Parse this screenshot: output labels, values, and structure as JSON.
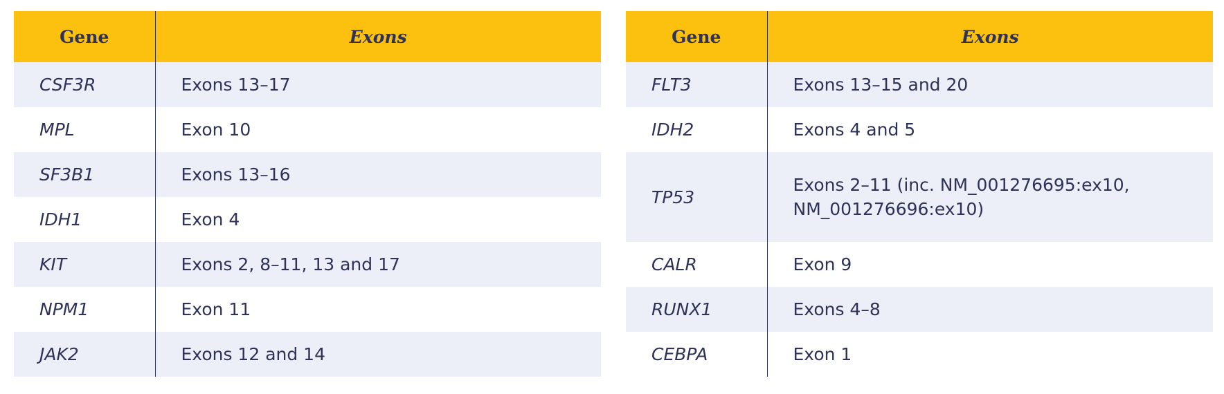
{
  "headers": {
    "gene": "Gene",
    "exons": "Exons"
  },
  "left_table": {
    "rows": [
      {
        "gene": "CSF3R",
        "exons": "Exons 13–17"
      },
      {
        "gene": "MPL",
        "exons": "Exon 10"
      },
      {
        "gene": "SF3B1",
        "exons": "Exons 13–16"
      },
      {
        "gene": "IDH1",
        "exons": "Exon 4"
      },
      {
        "gene": "KIT",
        "exons": "Exons 2, 8–11, 13 and 17"
      },
      {
        "gene": "NPM1",
        "exons": "Exon 11"
      },
      {
        "gene": "JAK2",
        "exons": "Exons 12 and 14"
      }
    ]
  },
  "right_table": {
    "rows": [
      {
        "gene": "FLT3",
        "exons": "Exons 13–15 and 20"
      },
      {
        "gene": "IDH2",
        "exons": "Exons 4 and 5"
      },
      {
        "gene": "TP53",
        "exons": "Exons 2–11 (inc. NM_001276695:ex10, NM_001276696:ex10)"
      },
      {
        "gene": "CALR",
        "exons": "Exon 9"
      },
      {
        "gene": "RUNX1",
        "exons": "Exons 4–8"
      },
      {
        "gene": "CEBPA",
        "exons": "Exon 1"
      }
    ]
  },
  "colors": {
    "header_background": "#fcc00e",
    "text": "#2e3258",
    "row_shade": "#edeff8",
    "row_plain": "#ffffff"
  }
}
